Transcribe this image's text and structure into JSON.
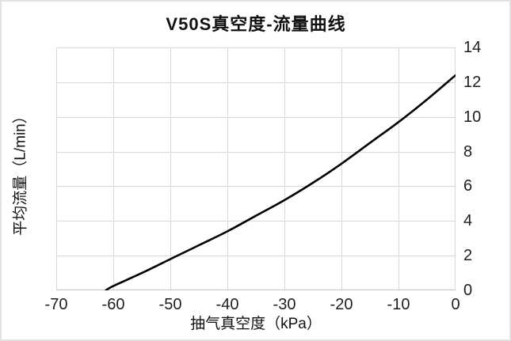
{
  "window": {
    "background": "#ffffff",
    "frame_border": "#e3e3e3"
  },
  "title": "V50S真空度-流量曲线",
  "colors": {
    "curve": "#000000",
    "gridline": "#d9d9d9",
    "axis_line": "#c7c7c7",
    "tick_text": "#1d1d24",
    "title_text": "#111111"
  },
  "chart_data": {
    "type": "line",
    "title": "V50S真空度-流量曲线",
    "xlabel": "抽气真空度（kPa）",
    "ylabel": "平均流量（L/min）",
    "xlim": [
      -70,
      0
    ],
    "ylim": [
      0,
      14
    ],
    "x_ticks": [
      "-70",
      "-60",
      "-50",
      "-40",
      "-30",
      "-20",
      "-10",
      "0"
    ],
    "x_tick_values": [
      -70,
      -60,
      -50,
      -40,
      -30,
      -20,
      -10,
      0
    ],
    "y_ticks": [
      "0",
      "2",
      "4",
      "6",
      "8",
      "10",
      "12",
      "14"
    ],
    "y_tick_values": [
      0,
      2,
      4,
      6,
      8,
      10,
      12,
      14
    ],
    "y_tick_side": "right",
    "grid": true,
    "legend": false,
    "series": [
      {
        "name": "V50S",
        "color": "#000000",
        "x": [
          -61.3,
          -60,
          -55,
          -50,
          -45,
          -40,
          -35,
          -30,
          -25,
          -20,
          -15,
          -10,
          -5,
          0
        ],
        "y": [
          0,
          0.25,
          1.0,
          1.8,
          2.6,
          3.4,
          4.3,
          5.2,
          6.2,
          7.3,
          8.5,
          9.7,
          11.0,
          12.4
        ]
      }
    ]
  }
}
